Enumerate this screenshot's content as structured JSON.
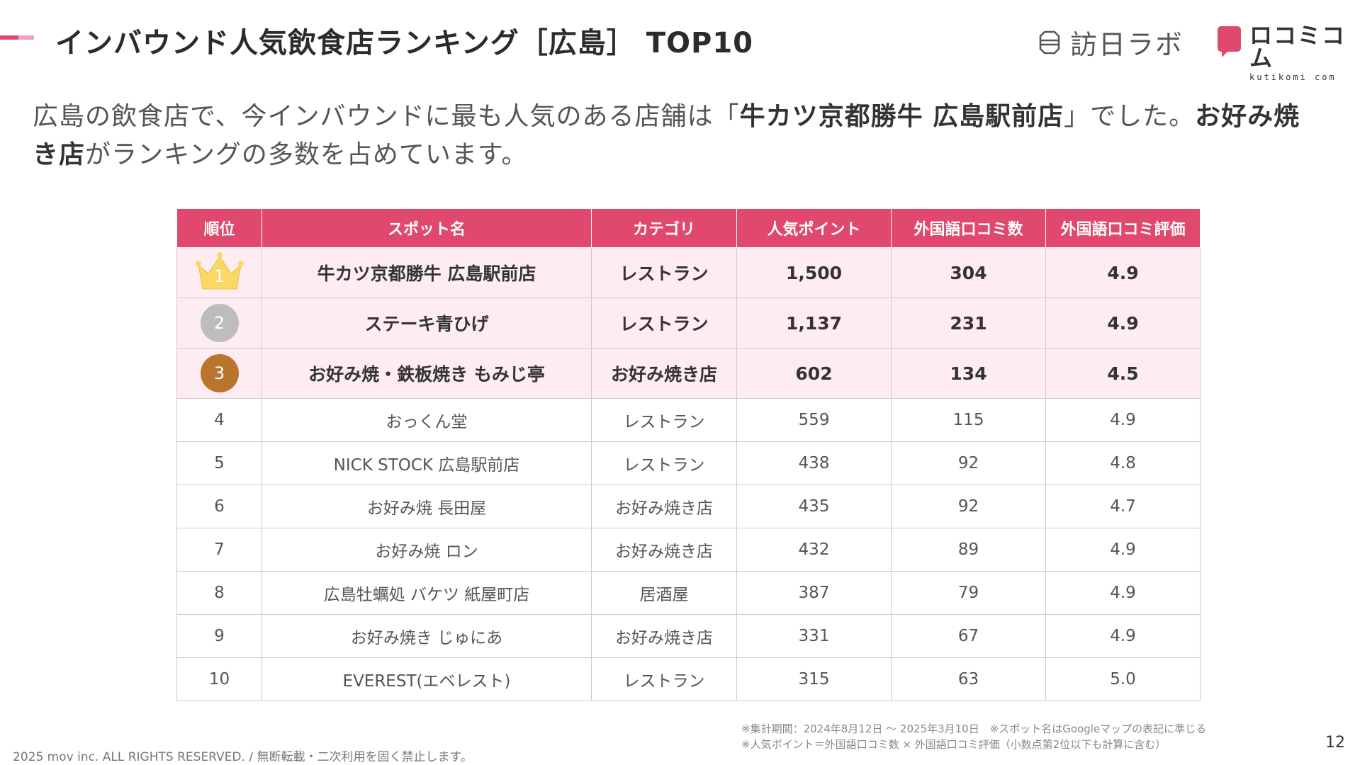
{
  "header": {
    "title": "インバウンド人気飲食店ランキング［広島］ TOP10",
    "logo_hojin": "訪日ラボ",
    "logo_kutikomi_jp": "ロコミコム",
    "logo_kutikomi_en": "kutikomi com",
    "brand_color": "#e0496d"
  },
  "lead": {
    "part1": "広島の飲食店で、今インバウンドに最も人気のある店舗は「",
    "bold1": "牛カツ京都勝牛 広島駅前店",
    "part2": "」でした。",
    "bold2": "お好み焼き店",
    "part3": "がランキングの多数を占めています。"
  },
  "table": {
    "headers": [
      "順位",
      "スポット名",
      "カテゴリ",
      "人気ポイント",
      "外国語口コミ数",
      "外国語口コミ評価"
    ],
    "rows": [
      {
        "rank": "1",
        "name": "牛カツ京都勝牛 広島駅前店",
        "category": "レストラン",
        "points": "1,500",
        "reviews": "304",
        "rating": "4.9"
      },
      {
        "rank": "2",
        "name": "ステーキ青ひげ",
        "category": "レストラン",
        "points": "1,137",
        "reviews": "231",
        "rating": "4.9"
      },
      {
        "rank": "3",
        "name": "お好み焼・鉄板焼き もみじ亭",
        "category": "お好み焼き店",
        "points": "602",
        "reviews": "134",
        "rating": "4.5"
      },
      {
        "rank": "4",
        "name": "おっくん堂",
        "category": "レストラン",
        "points": "559",
        "reviews": "115",
        "rating": "4.9"
      },
      {
        "rank": "5",
        "name": "NICK STOCK 広島駅前店",
        "category": "レストラン",
        "points": "438",
        "reviews": "92",
        "rating": "4.8"
      },
      {
        "rank": "6",
        "name": "お好み焼 長田屋",
        "category": "お好み焼き店",
        "points": "435",
        "reviews": "92",
        "rating": "4.7"
      },
      {
        "rank": "7",
        "name": "お好み焼 ロン",
        "category": "お好み焼き店",
        "points": "432",
        "reviews": "89",
        "rating": "4.9"
      },
      {
        "rank": "8",
        "name": "広島牡蠣処 バケツ 紙屋町店",
        "category": "居酒屋",
        "points": "387",
        "reviews": "79",
        "rating": "4.9"
      },
      {
        "rank": "9",
        "name": "お好み焼き じゅにあ",
        "category": "お好み焼き店",
        "points": "331",
        "reviews": "67",
        "rating": "4.9"
      },
      {
        "rank": "10",
        "name": "EVEREST(エベレスト)",
        "category": "レストラン",
        "points": "315",
        "reviews": "63",
        "rating": "5.0"
      }
    ]
  },
  "notes": {
    "line1": "※集計期間：2024年8月12日 〜 2025年3月10日　※スポット名はGoogleマップの表記に準じる",
    "line2": "※人気ポイント＝外国語口コミ数 × 外国語口コミ評価（小数点第2位以下も計算に含む）"
  },
  "footer": {
    "copyright": "2025 mov inc. ALL RIGHTS RESERVED. / 無断転載・二次利用を固く禁止します。",
    "page_number": "12"
  }
}
